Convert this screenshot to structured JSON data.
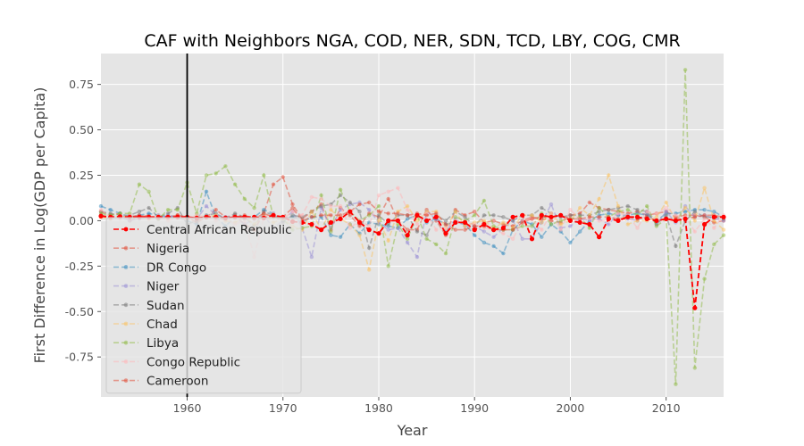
{
  "chart_data": {
    "type": "line",
    "title": "CAF with Neighbors NGA, COD, NER, SDN, TCD, LBY, COG, CMR",
    "xlabel": "Year",
    "ylabel": "First Difference in Log(GDP per Capita)",
    "xlim": [
      1951,
      2016
    ],
    "ylim": [
      -0.97,
      0.92
    ],
    "xticks": [
      "1960",
      "1970",
      "1980",
      "1990",
      "2000",
      "2010"
    ],
    "yticks": [
      "0.75",
      "0.50",
      "0.25",
      "0.00",
      "-0.25",
      "-0.50",
      "-0.75"
    ],
    "grid": true,
    "legend_position": "lower-left",
    "vertical_marker_x": 1960,
    "x": [
      1951,
      1952,
      1953,
      1954,
      1955,
      1956,
      1957,
      1958,
      1959,
      1960,
      1961,
      1962,
      1963,
      1964,
      1965,
      1966,
      1967,
      1968,
      1969,
      1970,
      1971,
      1972,
      1973,
      1974,
      1975,
      1976,
      1977,
      1978,
      1979,
      1980,
      1981,
      1982,
      1983,
      1984,
      1985,
      1986,
      1987,
      1988,
      1989,
      1990,
      1991,
      1992,
      1993,
      1994,
      1995,
      1996,
      1997,
      1998,
      1999,
      2000,
      2001,
      2002,
      2003,
      2004,
      2005,
      2006,
      2007,
      2008,
      2009,
      2010,
      2011,
      2012,
      2013,
      2014,
      2015,
      2016
    ],
    "series": [
      {
        "name": "Central African Republic",
        "color": "#ff0000",
        "highlight": true,
        "values": [
          0.025,
          0.02,
          0.022,
          0.02,
          0.02,
          0.02,
          0.02,
          0.02,
          0.02,
          0.02,
          0.015,
          0.02,
          0.02,
          0.015,
          0.02,
          0.02,
          0.02,
          0.015,
          0.03,
          0.02,
          -0.005,
          -0.01,
          -0.02,
          -0.05,
          -0.01,
          0.01,
          0.05,
          -0.01,
          -0.05,
          -0.07,
          0.0,
          0.0,
          -0.08,
          0.03,
          0.0,
          0.02,
          -0.07,
          -0.01,
          -0.01,
          -0.05,
          -0.02,
          -0.05,
          -0.04,
          0.02,
          0.03,
          -0.1,
          0.03,
          0.02,
          0.03,
          0.0,
          -0.01,
          -0.02,
          -0.09,
          0.01,
          0.0,
          0.02,
          0.02,
          0.01,
          0.0,
          0.01,
          0.0,
          0.01,
          -0.48,
          -0.02,
          0.02,
          0.02
        ]
      },
      {
        "name": "Nigeria",
        "color": "#e24a33",
        "values": [
          0.05,
          0.03,
          0.04,
          0.0,
          0.02,
          0.03,
          0.01,
          0.02,
          0.03,
          0.02,
          -0.01,
          0.02,
          0.06,
          0.02,
          0.03,
          -0.02,
          -0.05,
          0.04,
          0.2,
          0.24,
          0.09,
          0.01,
          0.05,
          0.09,
          -0.05,
          0.07,
          0.03,
          -0.03,
          0.04,
          0.02,
          0.12,
          0.0,
          -0.05,
          -0.05,
          0.06,
          0.0,
          -0.08,
          0.06,
          0.03,
          0.05,
          -0.01,
          0.0,
          -0.02,
          -0.03,
          0.0,
          0.02,
          0.01,
          0.0,
          -0.01,
          0.03,
          0.04,
          0.1,
          0.07,
          0.06,
          0.05,
          0.04,
          0.05,
          0.03,
          0.04,
          0.05,
          0.02,
          0.03,
          0.03,
          0.02,
          -0.01,
          0.0
        ]
      },
      {
        "name": "DR Congo",
        "color": "#348abd",
        "values": [
          0.08,
          0.06,
          0.04,
          0.02,
          0.03,
          0.04,
          0.03,
          0.02,
          0.02,
          0.0,
          -0.02,
          0.16,
          0.02,
          -0.03,
          0.02,
          0.01,
          0.02,
          0.06,
          0.04,
          0.0,
          0.02,
          -0.01,
          0.02,
          0.02,
          -0.08,
          -0.09,
          -0.02,
          -0.07,
          -0.01,
          -0.02,
          -0.03,
          -0.04,
          0.01,
          0.03,
          -0.01,
          0.01,
          -0.02,
          -0.01,
          -0.02,
          -0.08,
          -0.12,
          -0.14,
          -0.18,
          -0.05,
          0.0,
          -0.02,
          -0.09,
          -0.02,
          -0.06,
          -0.12,
          -0.06,
          0.0,
          0.03,
          0.04,
          0.03,
          0.03,
          0.04,
          0.03,
          0.0,
          0.04,
          0.04,
          0.05,
          0.06,
          0.06,
          0.05,
          0.02
        ]
      },
      {
        "name": "Niger",
        "color": "#988ed5",
        "values": [
          0.03,
          0.01,
          0.02,
          0.0,
          0.01,
          0.02,
          0.01,
          0.03,
          0.02,
          0.02,
          0.01,
          0.08,
          0.03,
          0.02,
          0.02,
          -0.02,
          0.01,
          0.03,
          -0.04,
          0.0,
          0.05,
          -0.04,
          -0.2,
          0.07,
          -0.04,
          0.06,
          0.09,
          0.1,
          0.06,
          -0.01,
          -0.05,
          -0.04,
          -0.12,
          -0.2,
          0.05,
          0.01,
          -0.06,
          0.01,
          -0.03,
          -0.03,
          -0.06,
          -0.09,
          -0.04,
          0.0,
          -0.1,
          -0.1,
          -0.01,
          0.09,
          -0.04,
          -0.03,
          0.01,
          0.0,
          0.01,
          -0.02,
          0.04,
          0.01,
          0.0,
          0.05,
          -0.02,
          0.05,
          -0.01,
          0.08,
          0.02,
          0.03,
          0.01,
          0.0
        ]
      },
      {
        "name": "Sudan",
        "color": "#777777",
        "values": [
          0.05,
          0.04,
          0.03,
          0.03,
          0.05,
          0.07,
          0.02,
          0.04,
          0.07,
          -0.02,
          0.0,
          0.03,
          0.04,
          0.01,
          0.04,
          0.02,
          -0.03,
          0.05,
          0.03,
          -0.01,
          0.03,
          0.02,
          0.05,
          0.08,
          0.09,
          0.14,
          0.1,
          0.05,
          -0.15,
          0.03,
          -0.02,
          0.03,
          0.03,
          -0.06,
          -0.08,
          0.03,
          0.0,
          0.05,
          0.02,
          -0.03,
          0.03,
          0.03,
          0.02,
          0.0,
          0.03,
          0.03,
          0.07,
          0.04,
          0.02,
          0.03,
          0.03,
          0.03,
          0.05,
          0.06,
          0.07,
          0.08,
          0.06,
          0.05,
          -0.02,
          0.03,
          -0.14,
          0.0,
          0.05,
          0.02,
          0.02,
          0.01
        ]
      },
      {
        "name": "Chad",
        "color": "#fbc15e",
        "values": [
          0.02,
          0.01,
          0.03,
          0.02,
          0.02,
          0.01,
          0.02,
          0.01,
          0.02,
          0.01,
          0.02,
          0.02,
          0.03,
          0.0,
          -0.01,
          0.02,
          -0.02,
          0.03,
          -0.01,
          0.01,
          -0.03,
          -0.05,
          0.05,
          -0.05,
          0.06,
          0.01,
          -0.02,
          -0.08,
          -0.27,
          0.0,
          -0.11,
          0.05,
          0.08,
          0.0,
          0.05,
          0.05,
          -0.04,
          0.05,
          -0.03,
          -0.01,
          0.0,
          -0.04,
          -0.01,
          -0.04,
          0.03,
          0.03,
          -0.01,
          0.04,
          -0.02,
          0.0,
          0.07,
          0.03,
          0.12,
          0.25,
          0.08,
          -0.02,
          0.0,
          0.0,
          0.02,
          0.1,
          0.0,
          0.07,
          0.0,
          0.18,
          0.0,
          -0.05
        ]
      },
      {
        "name": "Libya",
        "color": "#8eba42",
        "values": [
          0.04,
          0.03,
          0.04,
          0.04,
          0.2,
          0.16,
          0.01,
          0.06,
          0.06,
          0.21,
          0.04,
          0.25,
          0.26,
          0.3,
          0.2,
          0.12,
          0.07,
          0.25,
          0.02,
          0.01,
          -0.05,
          -0.04,
          -0.03,
          0.14,
          -0.06,
          0.17,
          0.05,
          0.0,
          0.03,
          0.08,
          -0.25,
          -0.02,
          -0.1,
          0.03,
          -0.1,
          -0.13,
          -0.18,
          0.02,
          0.0,
          0.03,
          0.11,
          -0.03,
          -0.05,
          -0.05,
          -0.03,
          -0.03,
          0.04,
          -0.02,
          0.0,
          0.01,
          0.02,
          -0.04,
          0.07,
          0.02,
          0.05,
          0.06,
          0.03,
          0.08,
          -0.03,
          0.01,
          -0.9,
          0.83,
          -0.81,
          -0.32,
          -0.13,
          -0.08
        ]
      },
      {
        "name": "Congo Republic",
        "color": "#ffb5b8",
        "values": [
          0.06,
          0.02,
          0.01,
          0.03,
          0.02,
          0.01,
          0.03,
          0.0,
          0.02,
          0.01,
          0.03,
          0.02,
          0.0,
          0.01,
          -0.02,
          0.0,
          -0.2,
          0.02,
          0.04,
          0.01,
          0.05,
          0.03,
          0.13,
          0.12,
          0.08,
          0.08,
          -0.04,
          0.0,
          -0.03,
          0.14,
          0.16,
          0.18,
          0.06,
          -0.02,
          0.04,
          -0.05,
          -0.04,
          0.0,
          -0.01,
          -0.02,
          -0.04,
          -0.05,
          -0.07,
          -0.1,
          0.0,
          0.01,
          -0.05,
          0.04,
          -0.05,
          0.06,
          0.01,
          0.01,
          0.0,
          0.0,
          0.04,
          0.03,
          -0.04,
          0.05,
          0.04,
          0.07,
          0.03,
          0.02,
          -0.06,
          0.01,
          -0.04,
          0.03
        ]
      },
      {
        "name": "Cameroon",
        "color": "#e24a33",
        "values": [
          0.03,
          0.02,
          0.02,
          0.02,
          0.03,
          0.02,
          0.02,
          0.02,
          0.03,
          0.02,
          0.01,
          0.02,
          0.02,
          0.01,
          0.02,
          0.03,
          0.01,
          0.04,
          0.02,
          0.02,
          0.07,
          0.0,
          0.02,
          0.03,
          0.03,
          0.03,
          0.05,
          0.09,
          0.1,
          0.05,
          0.04,
          0.04,
          0.03,
          0.04,
          0.03,
          0.04,
          -0.02,
          -0.05,
          -0.05,
          -0.03,
          -0.03,
          -0.05,
          -0.05,
          -0.05,
          -0.01,
          0.01,
          0.02,
          0.02,
          0.03,
          0.01,
          0.01,
          0.02,
          0.02,
          0.02,
          0.01,
          0.02,
          0.01,
          0.02,
          0.0,
          0.01,
          0.01,
          0.01,
          0.02,
          0.03,
          0.03,
          0.02
        ]
      }
    ]
  }
}
